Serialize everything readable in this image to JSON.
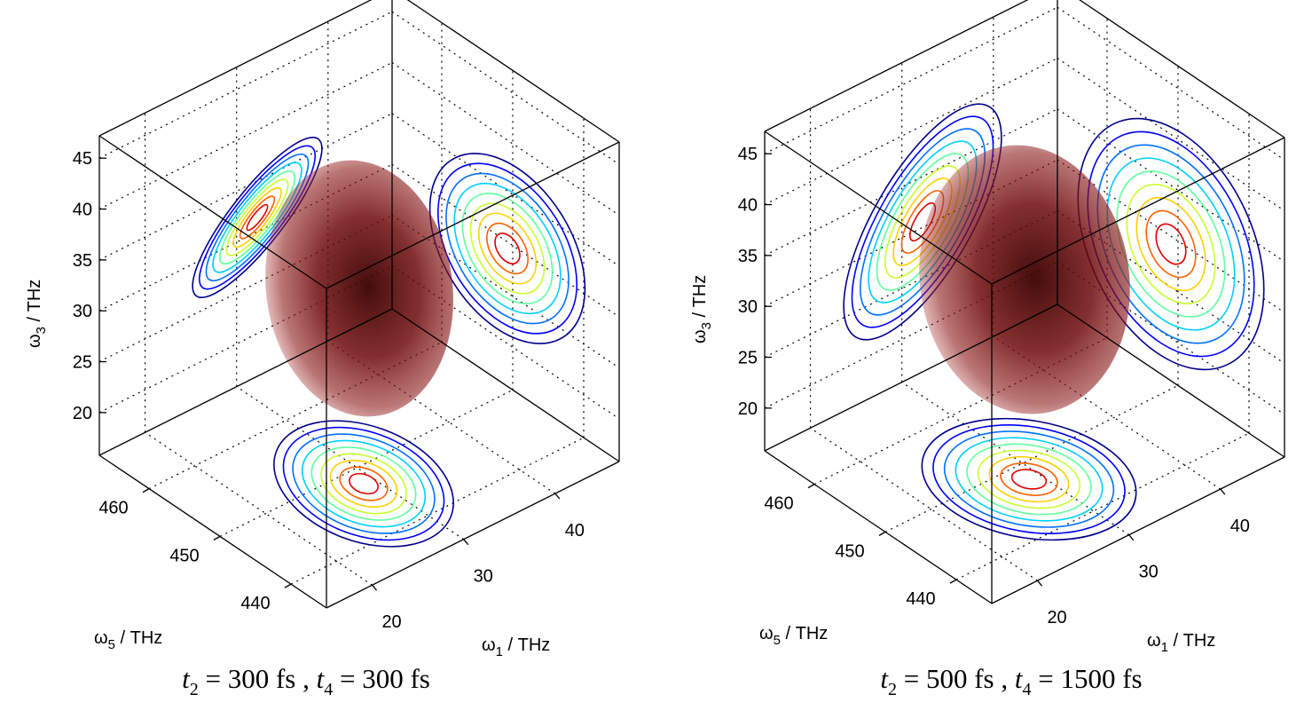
{
  "chart_data": [
    {
      "type": "isosurface3d",
      "xlabel": {
        "symbol": "ω",
        "index": "1",
        "unit": " / THz"
      },
      "ylabel": {
        "symbol": "ω",
        "index": "5",
        "unit": " / THz"
      },
      "zlabel": {
        "symbol": "ω",
        "index": "3",
        "unit": " / THz"
      },
      "xlim": [
        15,
        47
      ],
      "xticks": [
        20,
        30,
        40
      ],
      "ylim": [
        435,
        467
      ],
      "yticks": [
        440,
        450,
        460
      ],
      "zlim": [
        15.8,
        47.2
      ],
      "zticks": [
        20,
        25,
        30,
        35,
        40,
        45
      ],
      "grid": true,
      "caption": [
        {
          "text": "t",
          "style": "italic"
        },
        {
          "text": "2",
          "style": "sub"
        },
        {
          "text": " = 300 fs , ",
          "style": "normal"
        },
        {
          "text": "t",
          "style": "italic"
        },
        {
          "text": "4",
          "style": "sub"
        },
        {
          "text": " = 300 fs",
          "style": "normal"
        }
      ]
    },
    {
      "type": "isosurface3d",
      "xlabel": {
        "symbol": "ω",
        "index": "1",
        "unit": " / THz"
      },
      "ylabel": {
        "symbol": "ω",
        "index": "5",
        "unit": " / THz"
      },
      "zlabel": {
        "symbol": "ω",
        "index": "3",
        "unit": " / THz"
      },
      "xlim": [
        15,
        47
      ],
      "xticks": [
        20,
        30,
        40
      ],
      "ylim": [
        435,
        467
      ],
      "yticks": [
        440,
        450,
        460
      ],
      "zlim": [
        15.8,
        47.2
      ],
      "zticks": [
        20,
        25,
        30,
        35,
        40,
        45
      ],
      "grid": true,
      "caption": [
        {
          "text": "t",
          "style": "italic"
        },
        {
          "text": "2",
          "style": "sub"
        },
        {
          "text": " = 500 fs , ",
          "style": "normal"
        },
        {
          "text": "t",
          "style": "italic"
        },
        {
          "text": "4",
          "style": "sub"
        },
        {
          "text": " = 1500 fs",
          "style": "normal"
        }
      ]
    }
  ]
}
